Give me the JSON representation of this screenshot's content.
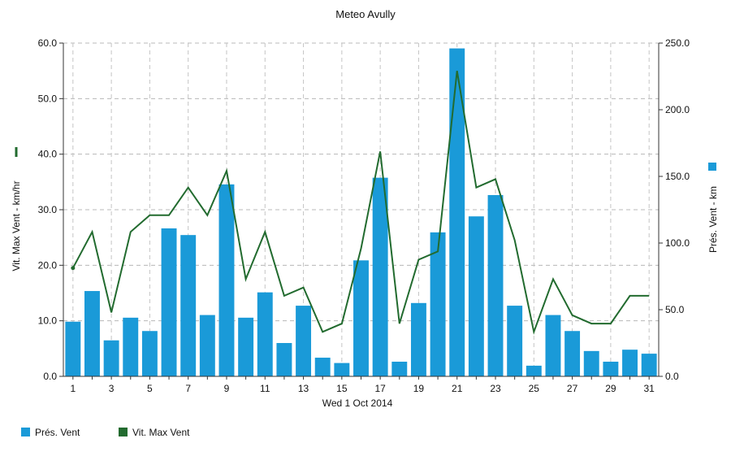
{
  "chart_data": {
    "type": "bar",
    "title": "Meteo  Avully",
    "xlabel": "Wed 1 Oct 2014",
    "x": [
      1,
      2,
      3,
      4,
      5,
      6,
      7,
      8,
      9,
      10,
      11,
      12,
      13,
      14,
      15,
      16,
      17,
      18,
      19,
      20,
      21,
      22,
      23,
      24,
      25,
      26,
      27,
      28,
      29,
      30,
      31
    ],
    "x_tick_labels": [
      "1",
      "3",
      "5",
      "7",
      "9",
      "11",
      "13",
      "15",
      "17",
      "19",
      "21",
      "23",
      "25",
      "27",
      "29",
      "31"
    ],
    "y_left": {
      "label": "Vit. Max Vent - km/hr",
      "range": [
        0,
        60
      ],
      "tick_labels": [
        "0.0",
        "10.0",
        "20.0",
        "30.0",
        "40.0",
        "50.0",
        "60.0"
      ]
    },
    "y_right": {
      "label": "Prés. Vent - km",
      "range": [
        0,
        250
      ],
      "tick_labels": [
        "0.0",
        "50.0",
        "100.0",
        "150.0",
        "200.0",
        "250.0"
      ]
    },
    "series": [
      {
        "name": "Prés. Vent",
        "type": "bar",
        "axis": "right",
        "color": "#1a9ad8",
        "values": [
          41,
          64,
          27,
          44,
          34,
          111,
          106,
          46,
          144,
          44,
          63,
          25,
          53,
          14,
          10,
          87,
          149,
          11,
          55,
          108,
          246,
          120,
          136,
          53,
          8,
          46,
          34,
          19,
          11,
          20,
          17
        ]
      },
      {
        "name": "Vit. Max Vent",
        "type": "line",
        "axis": "left",
        "color": "#226b2f",
        "values": [
          19.5,
          26,
          11.5,
          26,
          29,
          29,
          34,
          29,
          37,
          17.5,
          26,
          14.5,
          16,
          8,
          9.5,
          23,
          40.5,
          9.5,
          21,
          22.5,
          55,
          34,
          35.5,
          24.5,
          8,
          17.5,
          11,
          9.5,
          9.5,
          14.5,
          14.5
        ]
      }
    ],
    "grid": true,
    "legend": "bottom-left"
  }
}
